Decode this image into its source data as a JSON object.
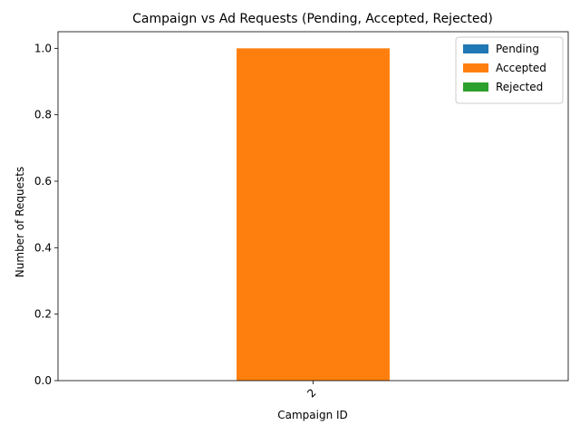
{
  "chart_data": {
    "type": "bar",
    "stacked": true,
    "title": "Campaign vs Ad Requests (Pending, Accepted, Rejected)",
    "xlabel": "Campaign ID",
    "ylabel": "Number of Requests",
    "categories": [
      "2"
    ],
    "series": [
      {
        "name": "Pending",
        "values": [
          0
        ],
        "color": "#1f77b4"
      },
      {
        "name": "Accepted",
        "values": [
          1
        ],
        "color": "#ff7f0e"
      },
      {
        "name": "Rejected",
        "values": [
          0
        ],
        "color": "#2ca02c"
      }
    ],
    "ylim": [
      0,
      1.05
    ],
    "yticks": [
      "0.0",
      "0.2",
      "0.4",
      "0.6",
      "0.8",
      "1.0"
    ],
    "grid": false,
    "legend": "top-right"
  }
}
